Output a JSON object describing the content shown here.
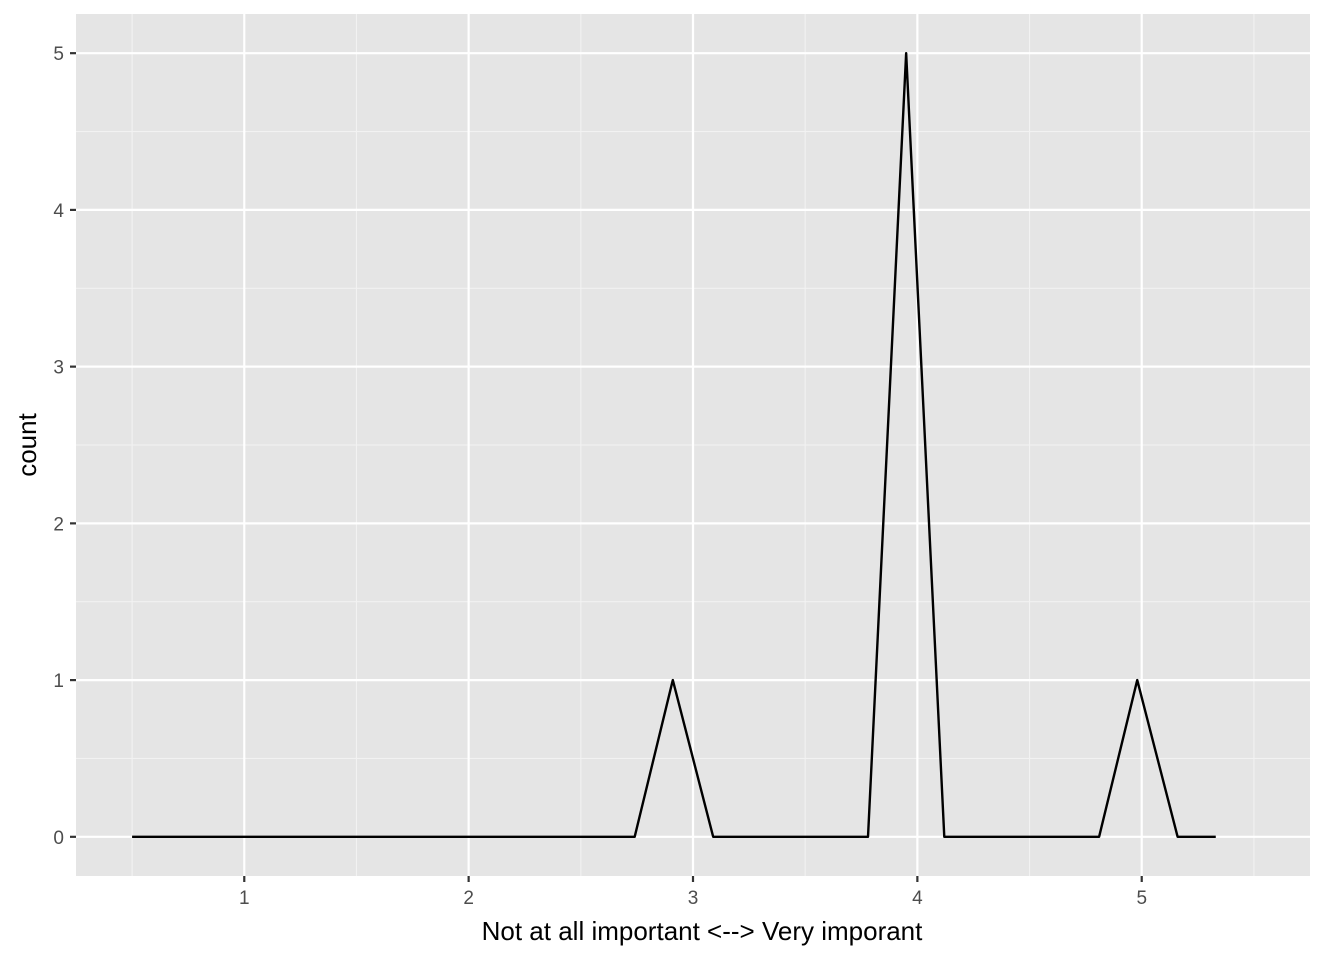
{
  "chart_data": {
    "type": "line",
    "title": "",
    "xlabel": "Not at all important <--> Very imporant",
    "ylabel": "count",
    "xlim": [
      0.25,
      5.75
    ],
    "ylim": [
      -0.25,
      5.25
    ],
    "x_ticks": [
      1,
      2,
      3,
      4,
      5
    ],
    "x_tick_labels": [
      "1",
      "2",
      "3",
      "4",
      "5"
    ],
    "y_ticks": [
      0,
      1,
      2,
      3,
      4,
      5
    ],
    "y_tick_labels": [
      "0",
      "1",
      "2",
      "3",
      "4",
      "5"
    ],
    "grid": true,
    "legend": "none",
    "colors": {
      "panel": "#e5e5e5",
      "grid": "#ffffff",
      "line": "#000000",
      "tick_label": "#4d4d4d"
    },
    "series": [
      {
        "x": [
          0.5,
          0.67,
          0.84,
          1.02,
          1.19,
          1.36,
          1.53,
          1.71,
          1.88,
          2.05,
          2.22,
          2.4,
          2.57,
          2.74,
          2.91,
          3.09,
          3.26,
          3.43,
          3.6,
          3.78,
          3.95,
          4.12,
          4.29,
          4.47,
          4.64,
          4.81,
          4.98,
          5.16,
          5.33
        ],
        "y": [
          0,
          0,
          0,
          0,
          0,
          0,
          0,
          0,
          0,
          0,
          0,
          0,
          0,
          0,
          1,
          0,
          0,
          0,
          0,
          0,
          5,
          0,
          0,
          0,
          0,
          0,
          1,
          0,
          0
        ]
      }
    ]
  }
}
